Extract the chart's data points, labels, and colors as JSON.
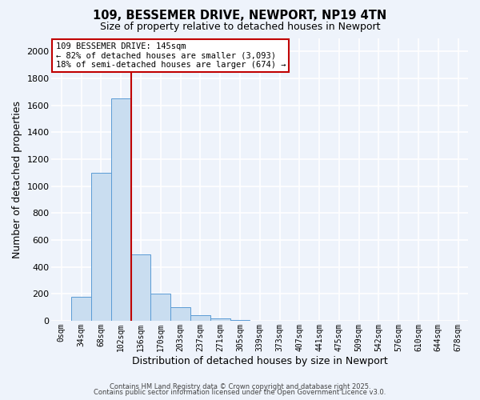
{
  "title": "109, BESSEMER DRIVE, NEWPORT, NP19 4TN",
  "subtitle": "Size of property relative to detached houses in Newport",
  "xlabel": "Distribution of detached houses by size in Newport",
  "ylabel": "Number of detached properties",
  "bar_labels": [
    "0sqm",
    "34sqm",
    "68sqm",
    "102sqm",
    "136sqm",
    "170sqm",
    "203sqm",
    "237sqm",
    "271sqm",
    "305sqm",
    "339sqm",
    "373sqm",
    "407sqm",
    "441sqm",
    "475sqm",
    "509sqm",
    "542sqm",
    "576sqm",
    "610sqm",
    "644sqm",
    "678sqm"
  ],
  "bar_values": [
    0,
    175,
    1100,
    1650,
    490,
    200,
    100,
    40,
    15,
    5,
    0,
    0,
    0,
    0,
    0,
    0,
    0,
    0,
    0,
    0,
    0
  ],
  "bar_color": "#c9ddf0",
  "bar_edge_color": "#5b9bd5",
  "background_color": "#eef3fb",
  "grid_color": "#ffffff",
  "ylim": [
    0,
    2100
  ],
  "yticks": [
    0,
    200,
    400,
    600,
    800,
    1000,
    1200,
    1400,
    1600,
    1800,
    2000
  ],
  "red_line_x": 4.0,
  "red_line_color": "#c00000",
  "annotation_line1": "109 BESSEMER DRIVE: 145sqm",
  "annotation_line2": "← 82% of detached houses are smaller (3,093)",
  "annotation_line3": "18% of semi-detached houses are larger (674) →",
  "footer1": "Contains HM Land Registry data © Crown copyright and database right 2025.",
  "footer2": "Contains public sector information licensed under the Open Government Licence v3.0."
}
